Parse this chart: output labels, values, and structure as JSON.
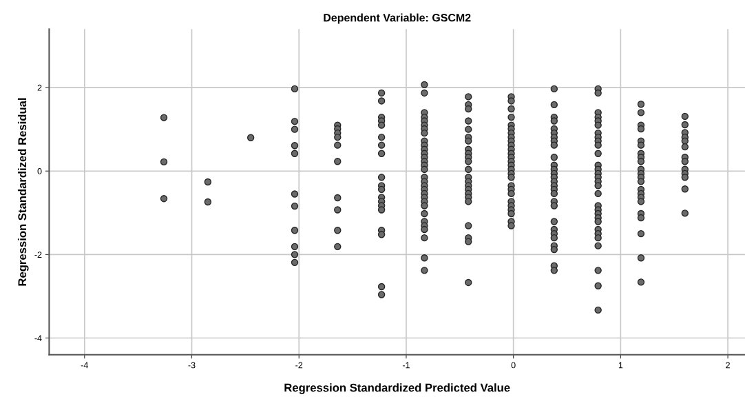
{
  "chart_data": {
    "type": "scatter",
    "title": "Dependent Variable: GSCM2",
    "xlabel": "Regression Standardized Predicted Value",
    "ylabel": "Regression Standardized Residual",
    "xlim": [
      -4.33,
      2.16
    ],
    "ylim": [
      -4.4,
      3.4
    ],
    "xticks": [
      -4,
      -3,
      -2,
      -1,
      0,
      1,
      2
    ],
    "yticks": [
      -4,
      -2,
      0,
      2
    ],
    "grid": true,
    "marker": "circle",
    "series": [
      {
        "color": "#6b6b6b",
        "x": [
          -3.26,
          -3.26,
          -3.26,
          -2.85,
          -2.85,
          -2.45,
          -2.04,
          -2.04,
          -2.04,
          -2.04,
          -2.04,
          -2.04,
          -2.04,
          -2.04,
          -2.04,
          -2.04,
          -2.04,
          -1.64,
          -1.64,
          -1.64,
          -1.64,
          -1.64,
          -1.64,
          -1.64,
          -1.64,
          -1.64,
          -1.64,
          -1.23,
          -1.23,
          -1.23,
          -1.23,
          -1.23,
          -1.23,
          -1.23,
          -1.23,
          -1.23,
          -1.23,
          -1.23,
          -1.23,
          -1.23,
          -1.23,
          -1.23,
          -1.23,
          -1.23,
          -1.23,
          -1.23,
          -0.83,
          -0.83,
          -0.83,
          -0.83,
          -0.83,
          -0.83,
          -0.83,
          -0.83,
          -0.83,
          -0.83,
          -0.83,
          -0.83,
          -0.83,
          -0.83,
          -0.83,
          -0.83,
          -0.83,
          -0.83,
          -0.83,
          -0.83,
          -0.83,
          -0.83,
          -0.83,
          -0.83,
          -0.83,
          -0.83,
          -0.83,
          -0.83,
          -0.83,
          -0.83,
          -0.83,
          -0.42,
          -0.42,
          -0.42,
          -0.42,
          -0.42,
          -0.42,
          -0.42,
          -0.42,
          -0.42,
          -0.42,
          -0.42,
          -0.42,
          -0.42,
          -0.42,
          -0.42,
          -0.42,
          -0.42,
          -0.42,
          -0.42,
          -0.42,
          -0.42,
          -0.42,
          -0.42,
          -0.02,
          -0.02,
          -0.02,
          -0.02,
          -0.02,
          -0.02,
          -0.02,
          -0.02,
          -0.02,
          -0.02,
          -0.02,
          -0.02,
          -0.02,
          -0.02,
          -0.02,
          -0.02,
          -0.02,
          -0.02,
          -0.02,
          -0.02,
          -0.02,
          -0.02,
          -0.02,
          -0.02,
          -0.02,
          -0.02,
          -0.02,
          0.38,
          0.38,
          0.38,
          0.38,
          0.38,
          0.38,
          0.38,
          0.38,
          0.38,
          0.38,
          0.38,
          0.38,
          0.38,
          0.38,
          0.38,
          0.38,
          0.38,
          0.38,
          0.38,
          0.38,
          0.38,
          0.38,
          0.38,
          0.38,
          0.38,
          0.38,
          0.38,
          0.38,
          0.79,
          0.79,
          0.79,
          0.79,
          0.79,
          0.79,
          0.79,
          0.79,
          0.79,
          0.79,
          0.79,
          0.79,
          0.79,
          0.79,
          0.79,
          0.79,
          0.79,
          0.79,
          0.79,
          0.79,
          0.79,
          0.79,
          0.79,
          0.79,
          0.79,
          0.79,
          0.79,
          0.79,
          0.79,
          0.79,
          1.19,
          1.19,
          1.19,
          1.19,
          1.19,
          1.19,
          1.19,
          1.19,
          1.19,
          1.19,
          1.19,
          1.19,
          1.19,
          1.19,
          1.19,
          1.19,
          1.19,
          1.19,
          1.19,
          1.19,
          1.19,
          1.19,
          1.6,
          1.6,
          1.6,
          1.6,
          1.6,
          1.6,
          1.6,
          1.6,
          1.6,
          1.6,
          1.6,
          1.6,
          1.6
        ],
        "values": [
          1.28,
          0.22,
          -0.66,
          -0.26,
          -0.74,
          0.8,
          1.97,
          1.19,
          1.0,
          0.61,
          0.42,
          -0.55,
          -0.84,
          -1.42,
          -1.81,
          -2.0,
          -2.19,
          1.1,
          1.01,
          0.91,
          0.81,
          0.62,
          0.23,
          -0.64,
          -0.93,
          -1.42,
          -1.81,
          1.87,
          1.68,
          1.29,
          1.2,
          1.1,
          0.81,
          0.62,
          0.42,
          -0.15,
          -0.35,
          -0.44,
          -0.63,
          -0.73,
          -0.83,
          -0.93,
          -1.42,
          -1.52,
          -2.77,
          -2.96,
          2.07,
          1.87,
          1.4,
          1.29,
          1.2,
          1.1,
          1.01,
          0.91,
          0.72,
          0.62,
          0.52,
          0.42,
          0.33,
          0.23,
          0.14,
          0.04,
          -0.15,
          -0.25,
          -0.35,
          -0.44,
          -0.54,
          -0.63,
          -0.73,
          -0.83,
          -1.02,
          -1.21,
          -1.31,
          -1.4,
          -1.6,
          -2.08,
          -2.38,
          1.78,
          1.59,
          1.49,
          1.2,
          1.0,
          0.81,
          0.72,
          0.52,
          0.42,
          0.33,
          0.23,
          0.04,
          -0.15,
          -0.25,
          -0.35,
          -0.44,
          -0.54,
          -0.63,
          -0.73,
          -1.31,
          -1.6,
          -1.69,
          -2.67,
          1.78,
          1.68,
          1.49,
          1.29,
          1.1,
          1.01,
          0.91,
          0.81,
          0.72,
          0.62,
          0.52,
          0.42,
          0.33,
          0.23,
          0.14,
          0.04,
          -0.06,
          -0.15,
          -0.35,
          -0.44,
          -0.54,
          -0.73,
          -0.83,
          -0.93,
          -1.02,
          -1.21,
          -1.31,
          1.97,
          1.59,
          1.29,
          1.2,
          1.01,
          0.91,
          0.81,
          0.72,
          0.62,
          0.33,
          0.14,
          0.04,
          -0.06,
          -0.15,
          -0.25,
          -0.35,
          -0.44,
          -0.54,
          -0.73,
          -0.83,
          -1.21,
          -1.4,
          -1.5,
          -1.6,
          -1.79,
          -1.88,
          -2.27,
          -2.38,
          1.97,
          1.87,
          1.4,
          1.29,
          1.2,
          1.1,
          0.91,
          0.81,
          0.72,
          0.62,
          0.42,
          0.14,
          0.04,
          -0.06,
          -0.15,
          -0.25,
          -0.35,
          -0.54,
          -0.83,
          -0.93,
          -1.02,
          -1.12,
          -1.21,
          -1.4,
          -1.5,
          -1.6,
          -1.79,
          -2.38,
          -2.75,
          -3.33,
          1.6,
          1.4,
          1.1,
          1.01,
          0.72,
          0.62,
          0.42,
          0.33,
          0.23,
          0.04,
          -0.06,
          -0.15,
          -0.25,
          -0.44,
          -0.54,
          -0.63,
          -0.73,
          -1.02,
          -1.12,
          -1.5,
          -2.08,
          -2.66,
          1.31,
          1.11,
          0.92,
          0.81,
          0.72,
          0.58,
          0.33,
          0.23,
          0.04,
          -0.06,
          -0.15,
          -0.43,
          -1.01
        ]
      }
    ]
  }
}
